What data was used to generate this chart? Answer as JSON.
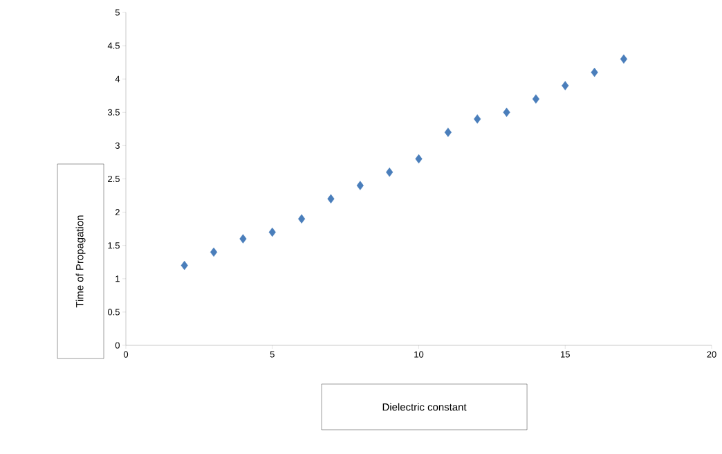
{
  "chart_data": {
    "type": "scatter",
    "xlabel": "Dielectric constant",
    "ylabel": "Time of Propagation",
    "x": [
      2,
      3,
      4,
      5,
      6,
      7,
      8,
      9,
      10,
      11,
      12,
      13,
      14,
      15,
      16,
      17
    ],
    "values": [
      1.2,
      1.4,
      1.6,
      1.7,
      1.9,
      2.2,
      2.4,
      2.6,
      2.8,
      3.2,
      3.4,
      3.5,
      3.7,
      3.9,
      4.1,
      4.3
    ],
    "color": "#4a7ebb",
    "marker": "diamond",
    "xlim": [
      0,
      20
    ],
    "ylim": [
      0,
      5
    ],
    "xticks": [
      0,
      5,
      10,
      15,
      20
    ],
    "yticks": [
      0,
      0.5,
      1,
      1.5,
      2,
      2.5,
      3,
      3.5,
      4,
      4.5,
      5
    ],
    "grid": false
  }
}
